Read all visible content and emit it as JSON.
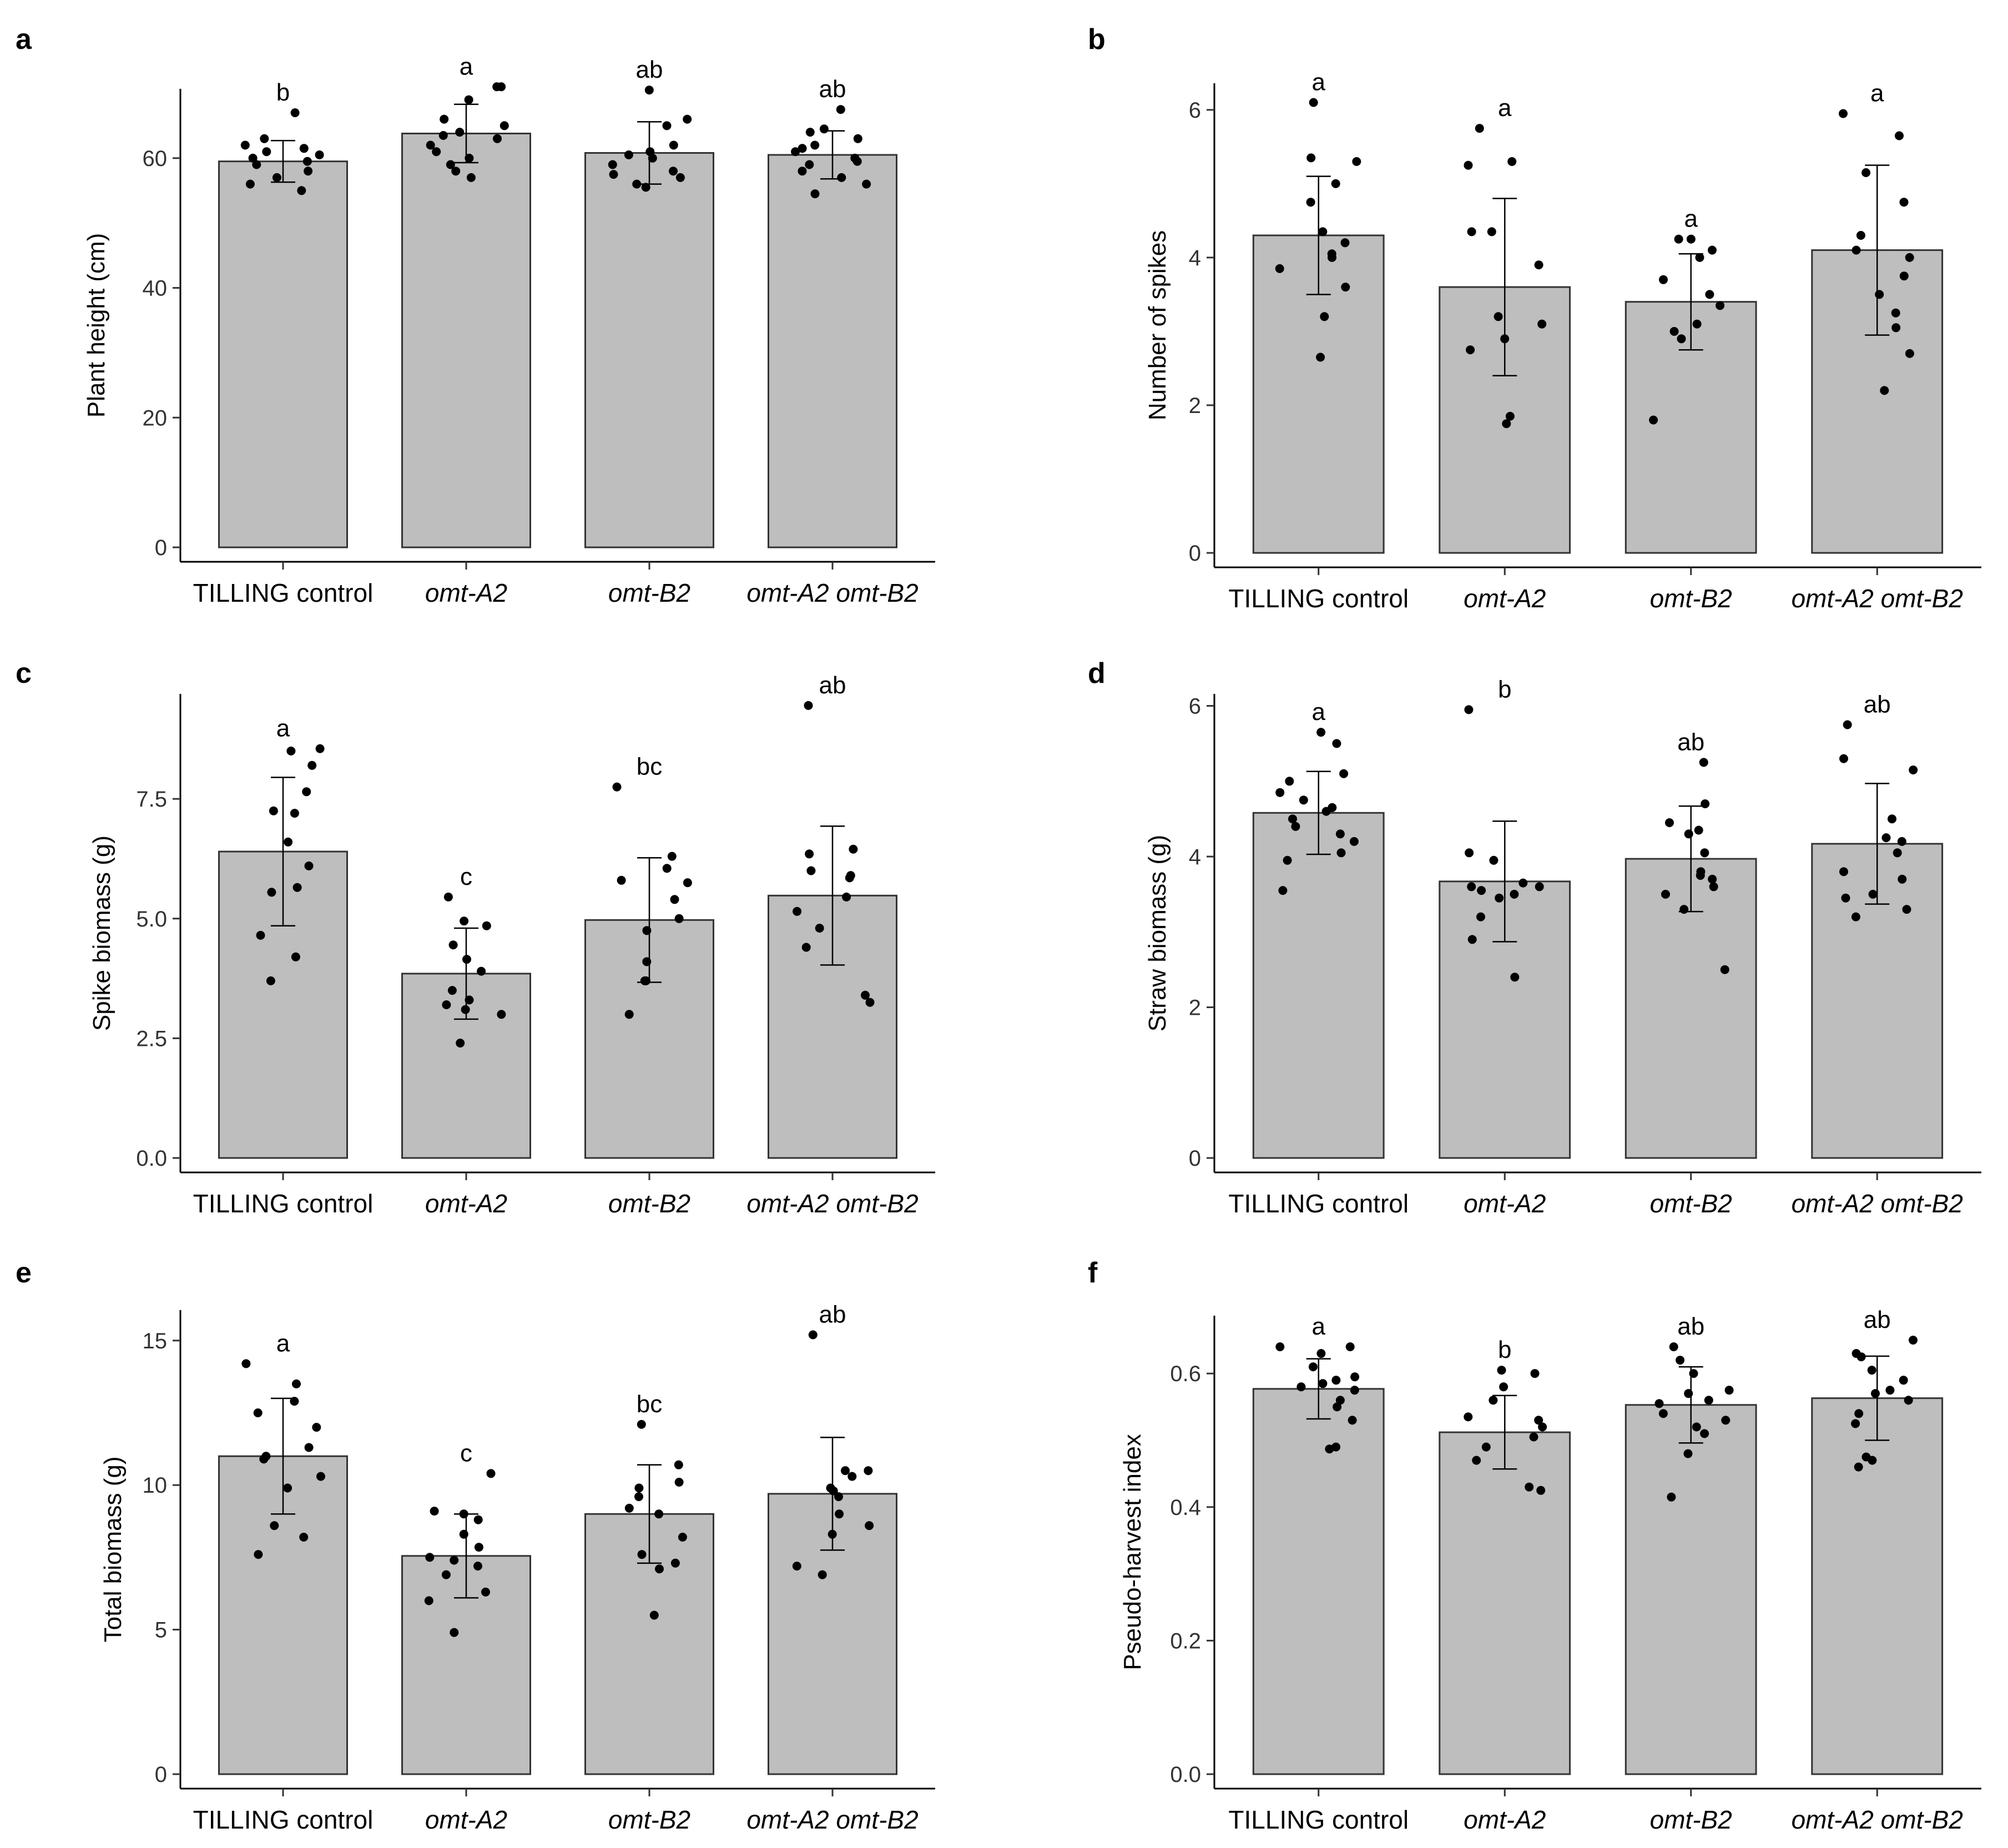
{
  "chart_data": [
    {
      "panel": "a",
      "type": "bar",
      "ylabel": "Plant  height (cm)",
      "ylim": [
        0,
        70
      ],
      "yticks": [
        0,
        20,
        40,
        60
      ],
      "categories": [
        "TILLING control",
        "omt-A2",
        "omt-B2",
        "omt-A2 omt-B2"
      ],
      "italic": [
        false,
        true,
        true,
        true
      ],
      "values": [
        59.5,
        63.8,
        60.8,
        60.5
      ],
      "sd": [
        3.2,
        4.5,
        4.8,
        3.7
      ],
      "letters": [
        "b",
        "a",
        "ab",
        "ab"
      ],
      "points": [
        [
          55,
          56,
          57,
          58,
          59,
          59.5,
          60,
          60.5,
          61,
          61.5,
          62,
          63,
          67
        ],
        [
          57,
          58,
          59,
          60,
          61,
          62,
          63,
          63.5,
          64,
          65,
          66,
          69,
          71,
          71
        ],
        [
          55.5,
          56,
          57,
          57.5,
          58,
          59,
          60,
          60.5,
          61,
          62,
          65,
          66,
          70.5
        ],
        [
          54.5,
          56,
          57,
          58,
          59,
          59.5,
          60,
          61,
          61.5,
          62,
          63,
          64,
          64.5,
          67.5
        ]
      ]
    },
    {
      "panel": "b",
      "type": "bar",
      "ylabel": "Number of spikes",
      "ylim": [
        0,
        6.3
      ],
      "yticks": [
        0,
        2,
        4,
        6
      ],
      "categories": [
        "TILLING control",
        "omt-A2",
        "omt-B2",
        "omt-A2 omt-B2"
      ],
      "italic": [
        false,
        true,
        true,
        true
      ],
      "values": [
        4.3,
        3.6,
        3.4,
        4.1
      ],
      "sd": [
        0.8,
        1.2,
        0.65,
        1.15
      ],
      "letters": [
        "a",
        "a",
        "a",
        "a"
      ],
      "points": [
        [
          2.65,
          3.2,
          3.6,
          3.85,
          4.0,
          4.05,
          4.2,
          4.35,
          4.75,
          5.0,
          5.3,
          5.35,
          6.1
        ],
        [
          1.75,
          1.85,
          2.75,
          2.9,
          3.1,
          3.2,
          3.9,
          4.35,
          4.35,
          5.25,
          5.3,
          5.75
        ],
        [
          1.8,
          2.9,
          3.0,
          3.1,
          3.35,
          3.5,
          3.7,
          4.0,
          4.1,
          4.25,
          4.25
        ],
        [
          2.2,
          2.7,
          3.05,
          3.25,
          3.5,
          3.75,
          4.0,
          4.1,
          4.3,
          4.75,
          5.15,
          5.65,
          5.95
        ]
      ]
    },
    {
      "panel": "c",
      "type": "bar",
      "ylabel": "Spike biomass (g)",
      "ylim": [
        0,
        9.6
      ],
      "yticks": [
        0,
        2.5,
        5,
        7.5
      ],
      "ytick_labels": [
        "0.0",
        "2.5",
        "5.0",
        "7.5"
      ],
      "categories": [
        "TILLING control",
        "omt-A2",
        "omt-B2",
        "omt-A2 omt-B2"
      ],
      "italic": [
        false,
        true,
        true,
        true
      ],
      "values": [
        6.4,
        3.85,
        4.97,
        5.48
      ],
      "sd": [
        1.55,
        0.95,
        1.3,
        1.45
      ],
      "letters": [
        "a",
        "c",
        "bc",
        "ab"
      ],
      "points": [
        [
          3.7,
          4.2,
          4.65,
          5.55,
          5.65,
          6.1,
          6.6,
          7.2,
          7.25,
          7.65,
          8.2,
          8.5,
          8.55
        ],
        [
          2.4,
          3.0,
          3.1,
          3.2,
          3.3,
          3.5,
          3.9,
          4.15,
          4.45,
          4.85,
          4.95,
          5.45
        ],
        [
          3.0,
          3.7,
          3.7,
          4.1,
          4.75,
          5.0,
          5.4,
          5.75,
          5.8,
          6.05,
          6.3,
          7.75
        ],
        [
          3.25,
          3.4,
          4.4,
          4.8,
          5.15,
          5.45,
          5.85,
          5.9,
          6.0,
          6.35,
          6.45,
          9.45
        ]
      ]
    },
    {
      "panel": "d",
      "type": "bar",
      "ylabel": "Straw biomass (g)",
      "ylim": [
        0,
        6.1
      ],
      "yticks": [
        0,
        2,
        4,
        6
      ],
      "categories": [
        "TILLING control",
        "omt-A2",
        "omt-B2",
        "omt-A2 omt-B2"
      ],
      "italic": [
        false,
        true,
        true,
        true
      ],
      "values": [
        4.58,
        3.67,
        3.97,
        4.17
      ],
      "sd": [
        0.55,
        0.8,
        0.7,
        0.8
      ],
      "letters": [
        "a",
        "b",
        "ab",
        "ab"
      ],
      "points": [
        [
          3.55,
          3.95,
          4.05,
          4.2,
          4.3,
          4.4,
          4.5,
          4.6,
          4.65,
          4.75,
          4.85,
          5.0,
          5.1,
          5.5,
          5.65
        ],
        [
          2.4,
          2.9,
          3.2,
          3.45,
          3.5,
          3.55,
          3.6,
          3.6,
          3.65,
          3.95,
          4.05,
          5.95
        ],
        [
          2.5,
          3.3,
          3.5,
          3.6,
          3.7,
          3.75,
          3.8,
          4.05,
          4.3,
          4.35,
          4.45,
          4.7,
          5.25
        ],
        [
          3.2,
          3.3,
          3.45,
          3.5,
          3.7,
          3.8,
          4.05,
          4.2,
          4.25,
          4.5,
          5.15,
          5.3,
          5.75
        ]
      ]
    },
    {
      "panel": "e",
      "type": "bar",
      "ylabel": "Total biomass (g)",
      "ylim": [
        0,
        15.9
      ],
      "yticks": [
        0,
        5,
        10,
        15
      ],
      "categories": [
        "TILLING control",
        "omt-A2",
        "omt-B2",
        "omt-A2 omt-B2"
      ],
      "italic": [
        false,
        true,
        true,
        true
      ],
      "values": [
        11.0,
        7.55,
        9.0,
        9.7
      ],
      "sd": [
        2.0,
        1.45,
        1.7,
        1.95
      ],
      "letters": [
        "a",
        "c",
        "bc",
        "ab"
      ],
      "points": [
        [
          7.6,
          8.2,
          8.6,
          9.9,
          10.3,
          10.9,
          11.0,
          11.3,
          12.0,
          12.5,
          12.9,
          13.5,
          14.2
        ],
        [
          4.9,
          6.0,
          6.3,
          6.9,
          7.2,
          7.4,
          7.5,
          7.85,
          8.3,
          8.8,
          9.0,
          9.1,
          10.4
        ],
        [
          5.5,
          7.1,
          7.3,
          7.6,
          8.2,
          9.0,
          9.2,
          9.6,
          9.9,
          10.1,
          10.7,
          12.1
        ],
        [
          6.9,
          7.2,
          8.3,
          8.6,
          9.0,
          9.6,
          9.8,
          9.9,
          10.3,
          10.5,
          10.5,
          15.2
        ]
      ]
    },
    {
      "panel": "f",
      "type": "bar",
      "ylabel": "Pseudo-harvest index",
      "ylim": [
        0,
        0.68
      ],
      "yticks": [
        0,
        0.2,
        0.4,
        0.6
      ],
      "ytick_labels": [
        "0.0",
        "0.2",
        "0.4",
        "0.6"
      ],
      "categories": [
        "TILLING control",
        "omt-A2",
        "omt-B2",
        "omt-A2 omt-B2"
      ],
      "italic": [
        false,
        true,
        true,
        true
      ],
      "values": [
        0.577,
        0.512,
        0.553,
        0.563
      ],
      "sd": [
        0.045,
        0.055,
        0.057,
        0.063
      ],
      "letters": [
        "a",
        "b",
        "ab",
        "ab"
      ],
      "points": [
        [
          0.487,
          0.49,
          0.53,
          0.55,
          0.56,
          0.575,
          0.58,
          0.585,
          0.59,
          0.595,
          0.61,
          0.63,
          0.64,
          0.64
        ],
        [
          0.425,
          0.43,
          0.47,
          0.49,
          0.505,
          0.52,
          0.53,
          0.535,
          0.56,
          0.58,
          0.6,
          0.605
        ],
        [
          0.415,
          0.48,
          0.51,
          0.52,
          0.53,
          0.54,
          0.555,
          0.56,
          0.57,
          0.575,
          0.6,
          0.62,
          0.64
        ],
        [
          0.46,
          0.47,
          0.475,
          0.525,
          0.54,
          0.56,
          0.57,
          0.575,
          0.59,
          0.605,
          0.625,
          0.63,
          0.65
        ]
      ]
    }
  ]
}
